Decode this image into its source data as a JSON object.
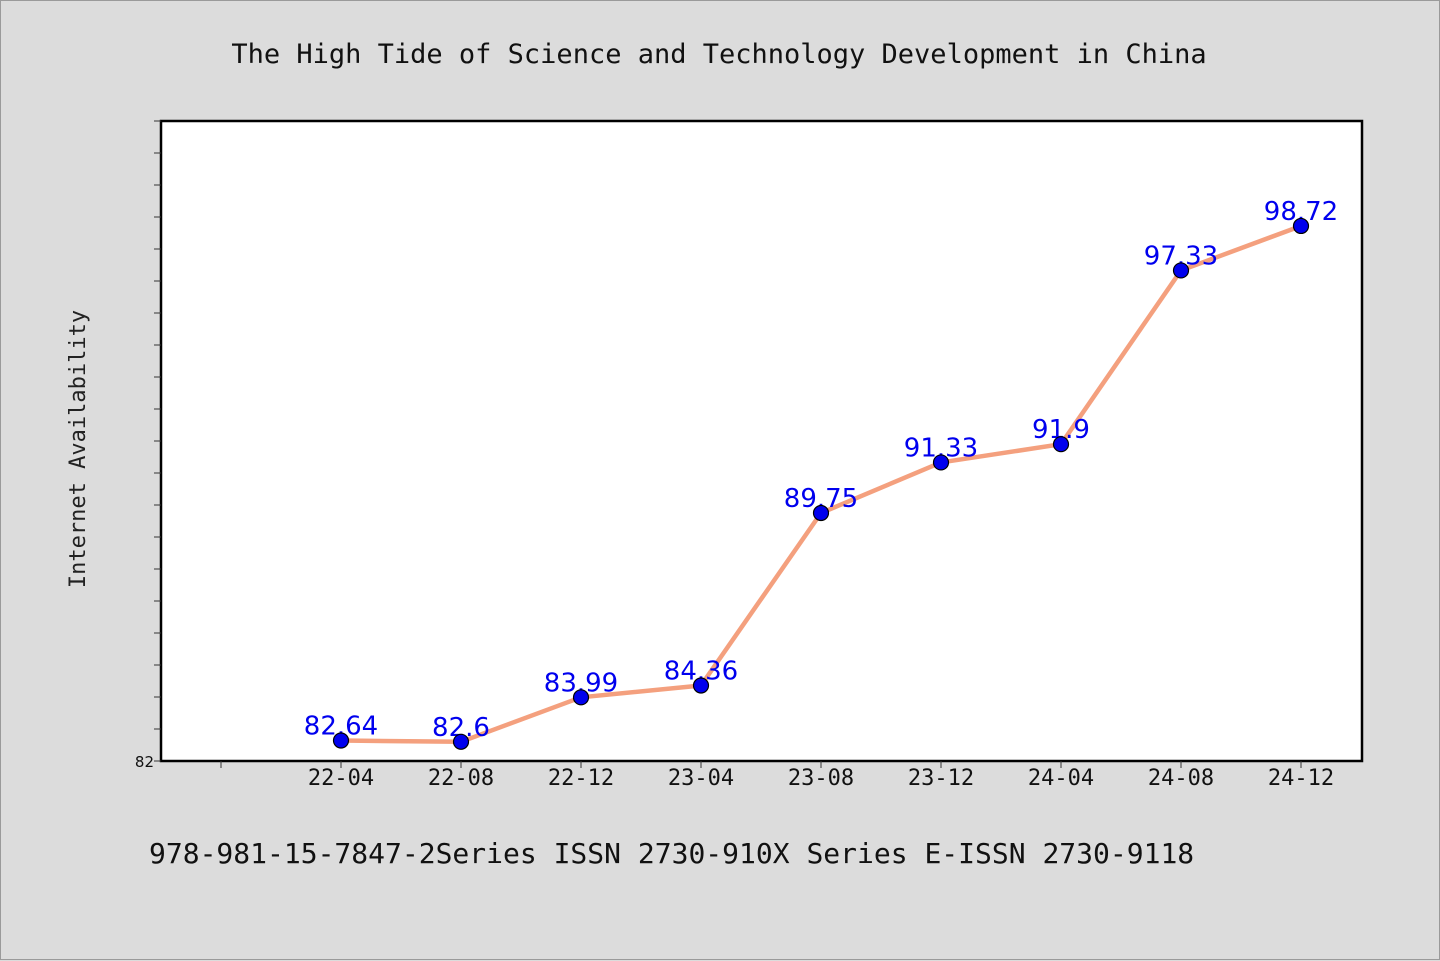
{
  "chart_data": {
    "type": "line",
    "title": "The High Tide of Science and Technology Development in China",
    "xlabel": "",
    "ylabel": "Internet Availability",
    "categories": [
      "22-04",
      "22-08",
      "22-12",
      "23-04",
      "23-08",
      "23-12",
      "24-04",
      "24-08",
      "24-12"
    ],
    "series": [
      {
        "values": [
          82.64,
          82.6,
          83.99,
          84.36,
          89.75,
          91.33,
          91.9,
          97.33,
          98.72
        ]
      }
    ],
    "data_labels": [
      "82.64",
      "82.6",
      "83.99",
      "84.36",
      "89.75",
      "91.33",
      "91.9",
      "97.33",
      "98.72"
    ],
    "ylim": [
      82,
      102
    ],
    "y_tick_labels": [
      "82"
    ],
    "grid": false,
    "legend": "none",
    "line_color": "#f4a07e",
    "marker_color": "#0000ee",
    "label_color": "#0000ee"
  },
  "footer": "978-981-15-7847-2Series ISSN 2730-910X Series E-ISSN 2730-9118"
}
